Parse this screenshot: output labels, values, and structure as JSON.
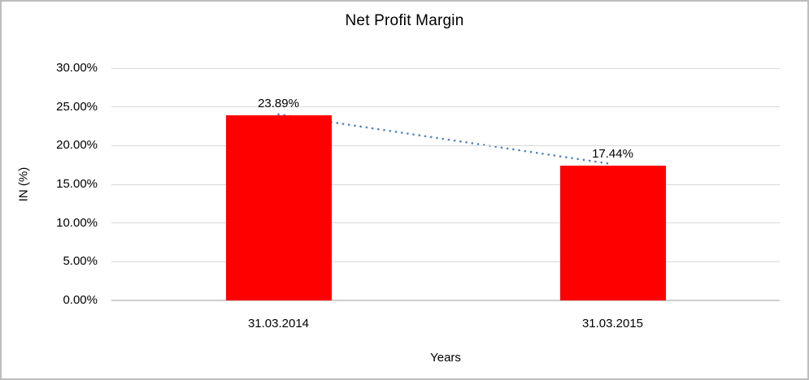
{
  "chart": {
    "title": "Net Profit Margin",
    "ylabel": "IN (%)",
    "xlabel": "Years"
  },
  "chart_data": {
    "type": "bar",
    "title": "Net Profit Margin",
    "xlabel": "Years",
    "ylabel": "IN (%)",
    "categories": [
      "31.03.2014",
      "31.03.2015"
    ],
    "series": [
      {
        "name": "Net Profit Margin",
        "values": [
          23.89,
          17.44
        ]
      }
    ],
    "data_labels": [
      "23.89%",
      "17.44%"
    ],
    "ylim": [
      0,
      30
    ],
    "yticks": [
      0,
      5,
      10,
      15,
      20,
      25,
      30
    ],
    "ytick_labels": [
      "0.00%",
      "5.00%",
      "10.00%",
      "15.00%",
      "20.00%",
      "25.00%",
      "30.00%"
    ],
    "grid": true,
    "legend": false,
    "bar_color": "#ff0000",
    "trendline": {
      "style": "dotted",
      "color": "#4f81bd"
    }
  }
}
